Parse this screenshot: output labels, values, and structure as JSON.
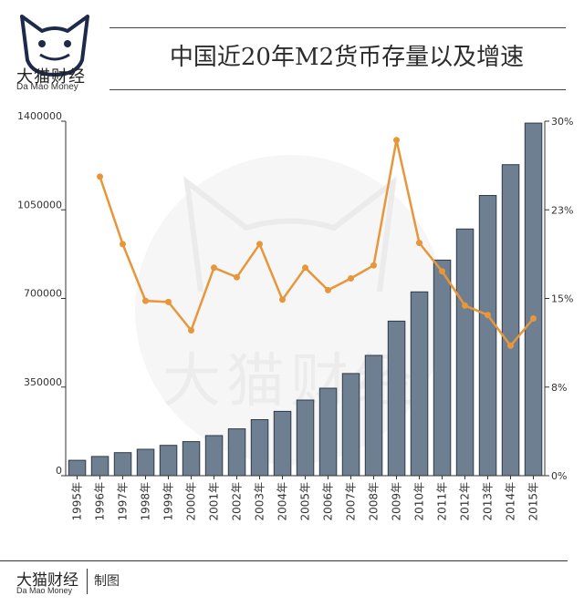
{
  "header": {
    "title": "中国近20年M2货币存量以及增速",
    "brand_cn": "大猫财经",
    "brand_en": "Da Mao Money"
  },
  "footer": {
    "brand_cn": "大猫财经",
    "brand_en": "Da Mao Money",
    "credit": "制图"
  },
  "watermark": "大猫财经",
  "colors": {
    "bar": "#6f7f92",
    "bar_stroke": "#2f3a48",
    "line": "#e8963a",
    "axis": "#333333",
    "watermark": "#f1f1f1"
  },
  "chart_data": {
    "type": "bar",
    "title": "中国近20年M2货币存量以及增速",
    "categories": [
      "1995年",
      "1996年",
      "1997年",
      "1998年",
      "1999年",
      "2000年",
      "2001年",
      "2002年",
      "2003年",
      "2004年",
      "2005年",
      "2006年",
      "2007年",
      "2008年",
      "2009年",
      "2010年",
      "2011年",
      "2012年",
      "2013年",
      "2014年",
      "2015年"
    ],
    "series": [
      {
        "type": "bar",
        "axis": "left",
        "values": [
          60750,
          76095,
          90995,
          104499,
          119898,
          134610,
          158302,
          185007,
          221223,
          254107,
          298756,
          345578,
          403442,
          475167,
          610225,
          725852,
          851591,
          974149,
          1106525,
          1228375,
          1392278
        ]
      },
      {
        "type": "line",
        "axis": "right",
        "values": [
          null,
          25.3,
          19.6,
          14.8,
          14.7,
          12.3,
          17.6,
          16.8,
          19.6,
          14.9,
          17.6,
          15.7,
          16.7,
          17.8,
          28.4,
          19.7,
          17.3,
          14.4,
          13.6,
          11.0,
          13.3
        ]
      }
    ],
    "y_left": {
      "ticks": [
        "0",
        "350000",
        "700000",
        "1050000",
        "1400000"
      ],
      "ylim": [
        0,
        1400000
      ]
    },
    "y_right": {
      "ticks": [
        "0%",
        "8%",
        "15%",
        "23%",
        "30%"
      ],
      "ylim": [
        0,
        30
      ]
    },
    "grid": false
  }
}
